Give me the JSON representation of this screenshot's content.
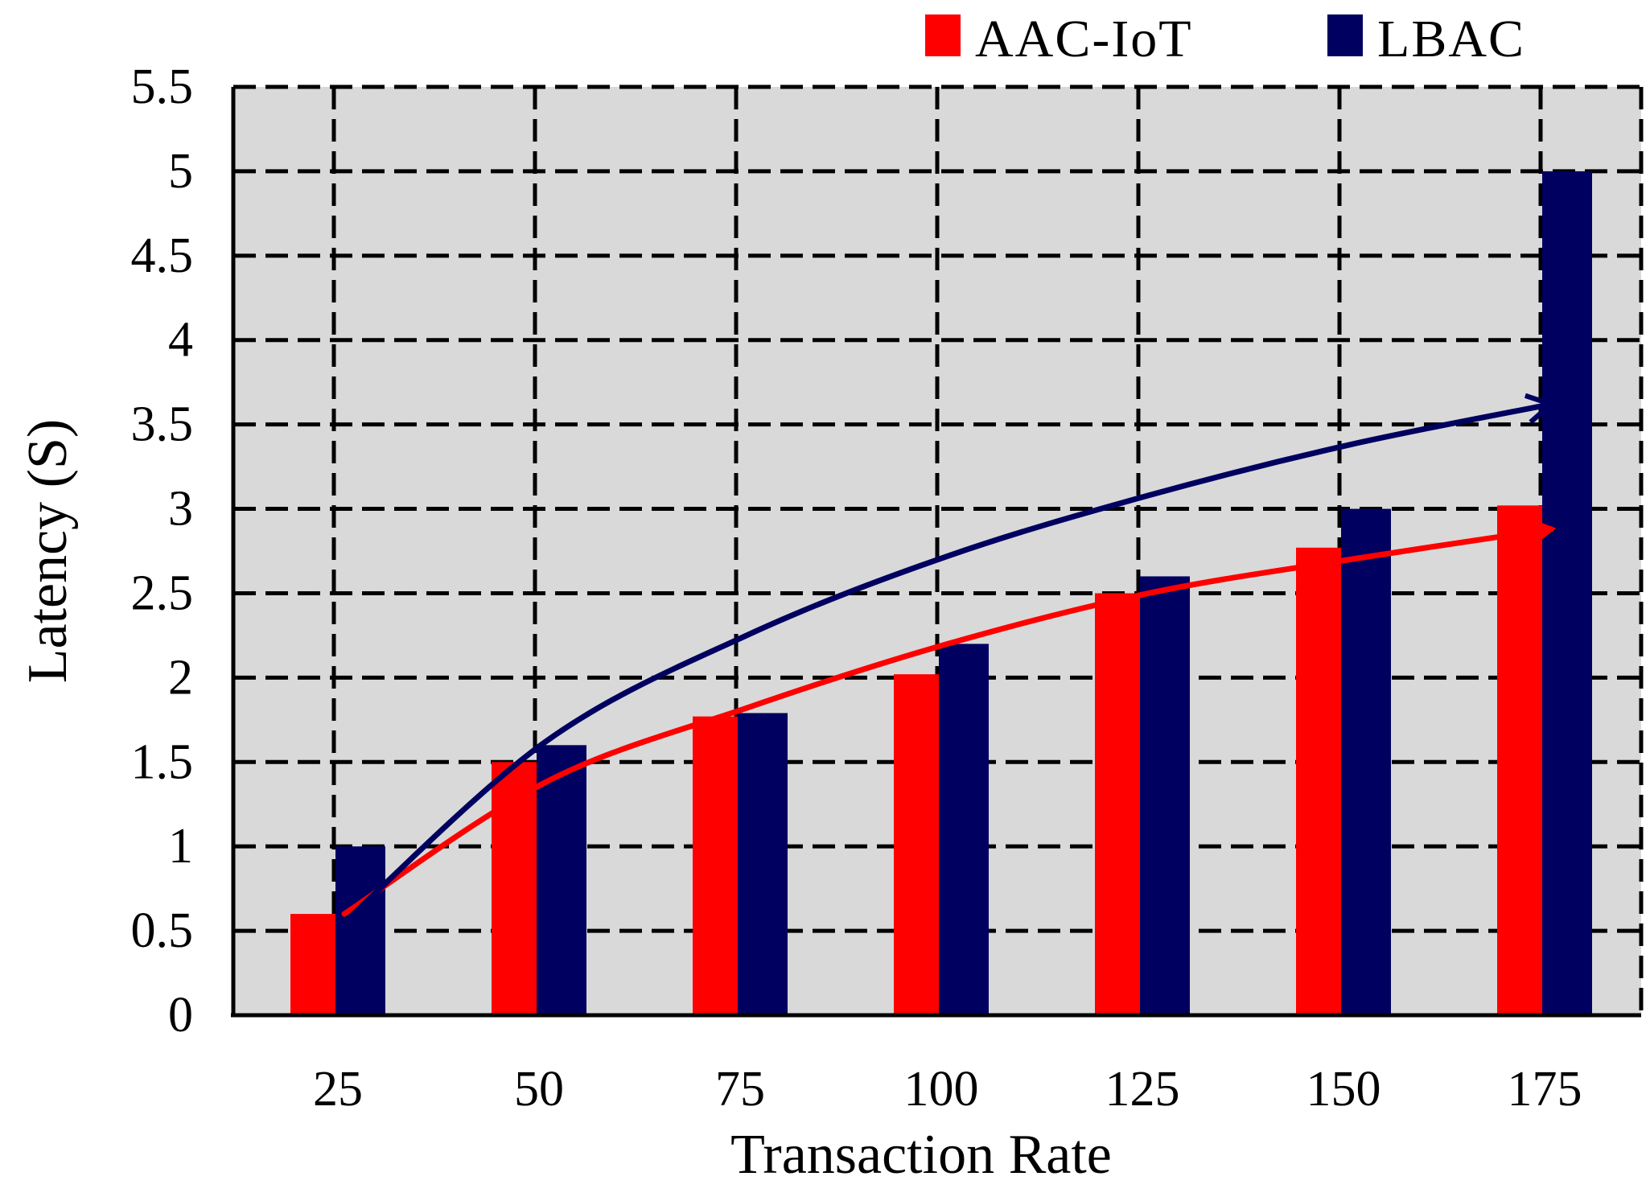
{
  "chart_data": {
    "type": "bar",
    "title": "",
    "xlabel": "Transaction Rate",
    "ylabel": "Latency (S)",
    "categories": [
      "25",
      "50",
      "75",
      "100",
      "125",
      "150",
      "175"
    ],
    "ylim": [
      0,
      5.5
    ],
    "yticks": [
      "0",
      "0.5",
      "1",
      "1.5",
      "2",
      "2.5",
      "3",
      "3.5",
      "4",
      "4.5",
      "5",
      "5.5"
    ],
    "grid": true,
    "legend_position": "top-right",
    "series": [
      {
        "name": "AAC-IoT",
        "color": "#ff0000",
        "values": [
          0.6,
          1.5,
          1.77,
          2.02,
          2.5,
          2.77,
          3.02
        ]
      },
      {
        "name": "LBAC",
        "color": "#000060",
        "values": [
          1.0,
          1.6,
          1.79,
          2.2,
          2.6,
          3.0,
          5.0
        ]
      }
    ],
    "trend_lines": [
      {
        "series": "AAC-IoT",
        "color": "#ff0000",
        "x": [
          25,
          50,
          75,
          100,
          125,
          150,
          175
        ],
        "y": [
          0.6,
          1.38,
          1.82,
          2.2,
          2.5,
          2.7,
          2.88
        ]
      },
      {
        "series": "LBAC",
        "color": "#000060",
        "x": [
          25,
          50,
          75,
          100,
          125,
          150,
          175
        ],
        "y": [
          0.55,
          1.62,
          2.25,
          2.72,
          3.08,
          3.38,
          3.62
        ]
      }
    ]
  }
}
